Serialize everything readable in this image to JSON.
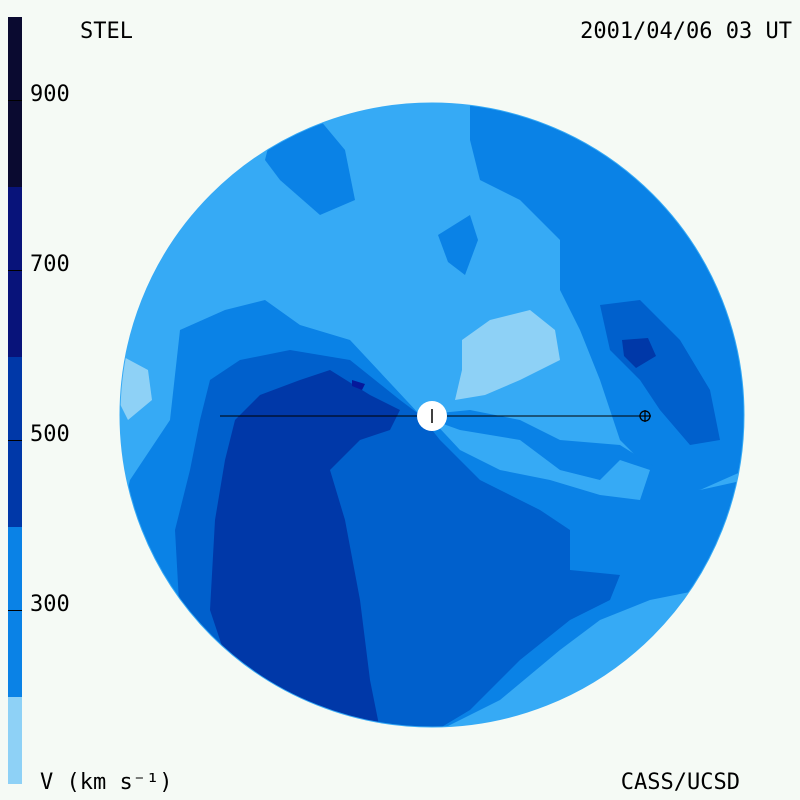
{
  "header": {
    "source_label": "STEL",
    "timestamp": "2001/04/06 03 UT"
  },
  "footer": {
    "units_label": "V (km s⁻¹)",
    "credit": "CASS/UCSD"
  },
  "colorbar": {
    "ticks": [
      "900",
      "700",
      "500",
      "300"
    ],
    "colors": [
      "#0a0a30",
      "#0a0f55",
      "#08137a",
      "#06199b",
      "#0028a8",
      "#0047bd",
      "#0060cc",
      "#0a82e6",
      "#36aaf5",
      "#8ed1f6"
    ]
  },
  "map": {
    "colors": {
      "light": "#8ed1f6",
      "sky": "#36aaf5",
      "mid": "#0a82e6",
      "deep": "#0060cc",
      "navy": "#0038a8",
      "darkest": "#06199b"
    },
    "sun_symbol": "sun-icon",
    "earth_symbol": "earth-icon"
  }
}
